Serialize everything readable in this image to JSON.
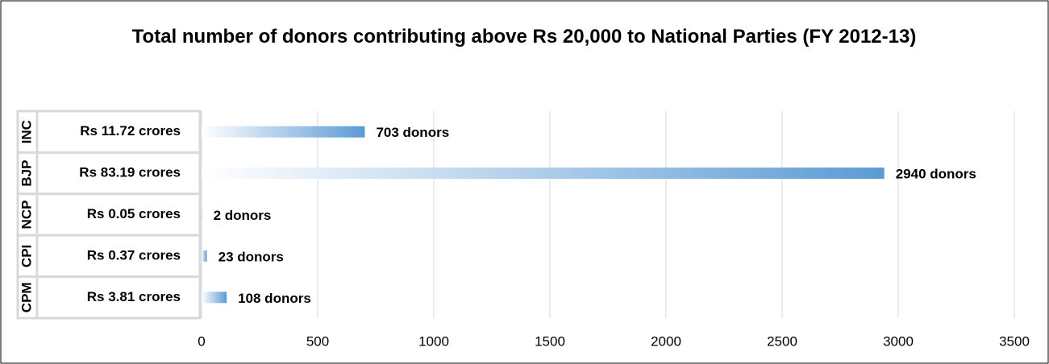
{
  "chart_data": {
    "type": "bar",
    "orientation": "horizontal",
    "title": "Total number of donors contributing above Rs 20,000 to National Parties (FY 2012-13)",
    "groups": [
      "INC",
      "BJP",
      "NCP",
      "CPI",
      "CPM"
    ],
    "categories": [
      "Rs 11.72 crores",
      "Rs 83.19 crores",
      "Rs 0.05 crores",
      "Rs 0.37 crores",
      "Rs 3.81 crores"
    ],
    "values": [
      703,
      2940,
      2,
      23,
      108
    ],
    "value_labels": [
      "703 donors",
      "2940 donors",
      "2 donors",
      "23 donors",
      "108 donors"
    ],
    "color": "#5b9bd5",
    "xlim": [
      0,
      3500
    ],
    "xticks": [
      0,
      500,
      1000,
      1500,
      2000,
      2500,
      3000,
      3500
    ],
    "grid": true
  }
}
